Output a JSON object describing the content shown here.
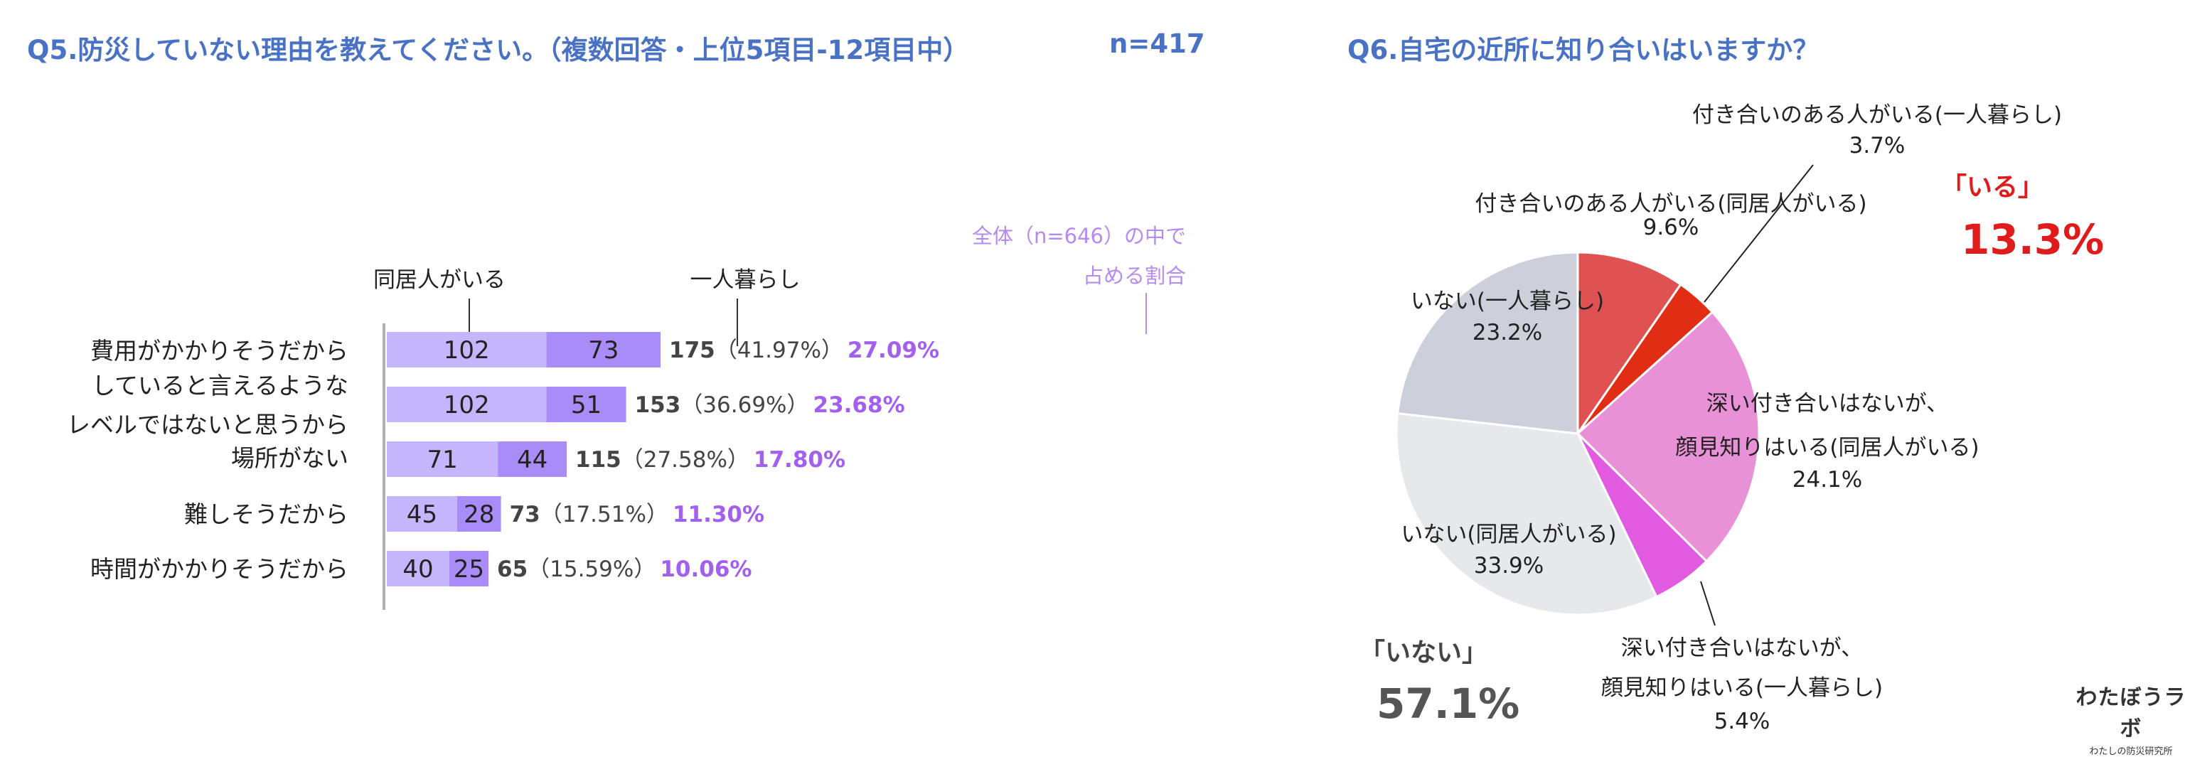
{
  "q5": {
    "title": "Q5.防災していない理由を教えてください。（複数回答・上位5項目-12項目中）",
    "n_label": "n=417",
    "legend": {
      "with_family": "同居人がいる",
      "alone": "一人暮らし"
    },
    "share_note": [
      "全体（n=646）の中で",
      "占める割合"
    ],
    "colors": {
      "with_family": "#c4b5fd",
      "alone": "#a98cf8",
      "share_text": "#a35ff0",
      "note_text": "#b68af3"
    }
  },
  "q6": {
    "title": "Q6.自宅の近所に知り合いはいますか？",
    "summary_yes": {
      "label": "「いる」",
      "value": "13.3%",
      "color": "#e01b1b"
    },
    "summary_no": {
      "label": "「いない」",
      "value": "57.1%",
      "color": "#555555"
    }
  },
  "logo": {
    "main": "わたぼうラボ",
    "sub": "わたしの防災研究所"
  },
  "chart_data": [
    {
      "type": "bar",
      "stacked": true,
      "orientation": "horizontal",
      "categories": [
        [
          "費用がかかりそうだから"
        ],
        [
          "していると言えるような",
          "レベルではないと思うから"
        ],
        [
          "場所がない"
        ],
        [
          "難しそうだから"
        ],
        [
          "時間がかかりそうだから"
        ]
      ],
      "series": [
        {
          "name": "同居人がいる",
          "values": [
            102,
            102,
            71,
            45,
            40
          ]
        },
        {
          "name": "一人暮らし",
          "values": [
            73,
            51,
            44,
            28,
            25
          ]
        }
      ],
      "totals": [
        175,
        153,
        115,
        73,
        65
      ],
      "percent_labels": [
        "（41.97%）",
        "（36.69%）",
        "（27.58%）",
        "（17.51%）",
        "（15.59%）"
      ],
      "share_labels": [
        "27.09%",
        "23.68%",
        "17.80%",
        "11.30%",
        "10.06%"
      ],
      "xlim": [
        0,
        175
      ]
    },
    {
      "type": "pie",
      "slices": [
        {
          "label": [
            "付き合いのある人がいる(同居人がいる)"
          ],
          "value": 9.6,
          "value_label": "9.6%",
          "color": "#e05151"
        },
        {
          "label": [
            "付き合いのある人がいる(一人暮らし)"
          ],
          "value": 3.7,
          "value_label": "3.7%",
          "color": "#e02d14"
        },
        {
          "label": [
            "深い付き合いはないが、",
            "顔見知りはいる(同居人がいる)"
          ],
          "value": 24.1,
          "value_label": "24.1%",
          "color": "#e891d6"
        },
        {
          "label": [
            "深い付き合いはないが、",
            "顔見知りはいる(一人暮らし)"
          ],
          "value": 5.4,
          "value_label": "5.4%",
          "color": "#e25ae0"
        },
        {
          "label": [
            "いない(同居人がいる)"
          ],
          "value": 33.9,
          "value_label": "33.9%",
          "color": "#e7e8ec"
        },
        {
          "label": [
            "いない(一人暮らし)"
          ],
          "value": 23.2,
          "value_label": "23.2%",
          "color": "#cdd0da"
        }
      ]
    }
  ]
}
